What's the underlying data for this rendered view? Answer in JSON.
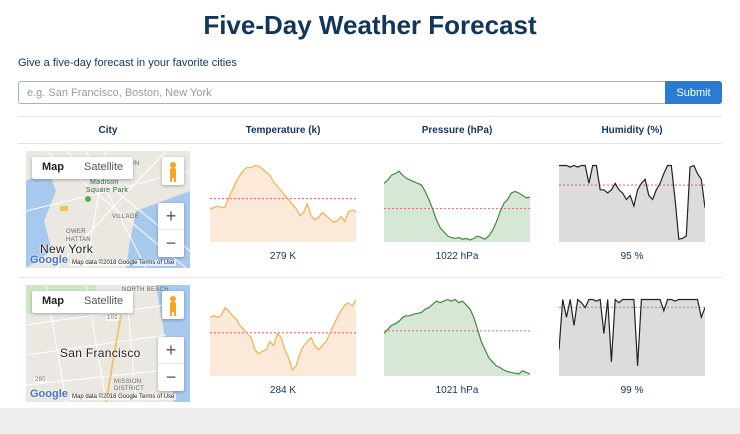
{
  "header": {
    "title": "Five-Day Weather Forecast",
    "subtitle": "Give a five-day forecast in your favorite cities"
  },
  "search": {
    "placeholder": "e.g. San Francisco, Boston, New York",
    "value": "",
    "submit_label": "Submit"
  },
  "table": {
    "columns": [
      "City",
      "Temperature (k)",
      "Pressure (hPa)",
      "Humidity (%)"
    ],
    "rows": [
      {
        "map": {
          "map_label": "Map",
          "satellite_label": "Satellite",
          "city_label": "New York",
          "places": [
            "MIDTOWN",
            "Madison",
            "Square Park",
            "VILLAGE",
            "OWER",
            "HATTAN"
          ],
          "google_label": "Google",
          "attribution": "Map data ©2018 Google   Terms of Use"
        },
        "temperature": {
          "value": "279 K",
          "color": "#f2b04c",
          "fill": "#fbe9da",
          "series": [
            38,
            40,
            42,
            40,
            41,
            52,
            62,
            72,
            80,
            86,
            90,
            89,
            92,
            91,
            88,
            84,
            80,
            72,
            66,
            61,
            55,
            50,
            44,
            39,
            30,
            34,
            45,
            30,
            25,
            28,
            34,
            30,
            26,
            22,
            24,
            29,
            23,
            35,
            37,
            35
          ]
        },
        "pressure": {
          "value": "1022 hPa",
          "color": "#3f8a3b",
          "fill": "#d6e7d6",
          "series": [
            70,
            74,
            80,
            82,
            85,
            80,
            76,
            74,
            72,
            70,
            68,
            60,
            50,
            38,
            25,
            15,
            10,
            5,
            3,
            2,
            3,
            1,
            2,
            0,
            2,
            5,
            3,
            1,
            5,
            12,
            22,
            35,
            45,
            50,
            58,
            60,
            58,
            55,
            52,
            53
          ]
        },
        "humidity": {
          "value": "95 %",
          "color": "#222222",
          "fill": "#dcdcdc",
          "series": [
            92,
            92,
            92,
            90,
            92,
            90,
            92,
            92,
            70,
            92,
            92,
            62,
            62,
            58,
            62,
            70,
            62,
            58,
            50,
            55,
            42,
            62,
            70,
            75,
            55,
            50,
            62,
            70,
            82,
            92,
            92,
            50,
            1,
            2,
            5,
            90,
            92,
            82,
            75,
            40
          ]
        }
      },
      {
        "map": {
          "map_label": "Map",
          "satellite_label": "Satellite",
          "city_label": "San Francisco",
          "places": [
            "NORTH BEACH",
            "MISSION",
            "DISTRICT",
            "101",
            "280"
          ],
          "google_label": "Google",
          "attribution": "Map data ©2018 Google   Terms of Use"
        },
        "temperature": {
          "value": "284 K",
          "color": "#f2b04c",
          "fill": "#fbe9da",
          "series": [
            70,
            72,
            70,
            72,
            82,
            78,
            72,
            68,
            60,
            55,
            50,
            45,
            30,
            25,
            28,
            30,
            40,
            35,
            50,
            45,
            30,
            20,
            5,
            10,
            25,
            35,
            40,
            45,
            35,
            30,
            35,
            40,
            50,
            60,
            70,
            78,
            85,
            88,
            84,
            92
          ]
        },
        "pressure": {
          "value": "1021 hPa",
          "color": "#3f8a3b",
          "fill": "#d6e7d6",
          "series": [
            50,
            55,
            60,
            62,
            65,
            70,
            72,
            72,
            74,
            75,
            76,
            80,
            82,
            86,
            90,
            88,
            90,
            92,
            90,
            92,
            88,
            90,
            85,
            80,
            70,
            55,
            40,
            30,
            20,
            15,
            10,
            8,
            5,
            3,
            2,
            1,
            0,
            4,
            2,
            0
          ]
        },
        "humidity": {
          "value": "99 %",
          "color": "#222222",
          "fill": "#dcdcdc",
          "series": [
            30,
            92,
            70,
            92,
            60,
            92,
            88,
            82,
            92,
            92,
            90,
            92,
            50,
            92,
            15,
            92,
            88,
            92,
            92,
            92,
            92,
            10,
            92,
            92,
            92,
            92,
            92,
            92,
            78,
            92,
            92,
            90,
            92,
            92,
            92,
            92,
            92,
            92,
            70,
            82
          ]
        }
      }
    ]
  }
}
